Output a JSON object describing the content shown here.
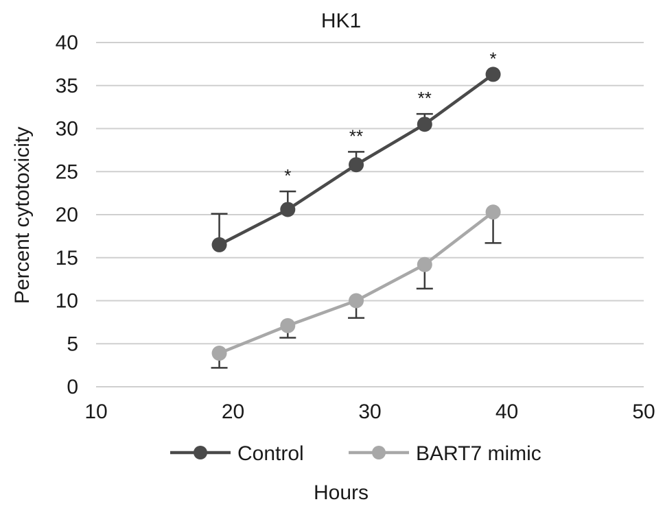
{
  "chart_data": {
    "type": "line",
    "title": "HK1",
    "xlabel": "Hours",
    "ylabel": "Percent cytotoxicity",
    "xlim": [
      10,
      50
    ],
    "ylim": [
      0,
      40
    ],
    "x_ticks": [
      10,
      20,
      30,
      40,
      50
    ],
    "y_ticks": [
      0,
      5,
      10,
      15,
      20,
      25,
      30,
      35,
      40
    ],
    "grid": "horizontal",
    "legend_position": "bottom",
    "series": [
      {
        "name": "Control",
        "color": "#4a4a4a",
        "x": [
          19,
          24,
          29,
          34,
          39
        ],
        "y": [
          16.5,
          20.6,
          25.8,
          30.5,
          36.3
        ],
        "error": [
          3.6,
          2.1,
          1.5,
          1.2,
          0.0
        ],
        "error_direction": "up"
      },
      {
        "name": "BART7 mimic",
        "color": "#a8a8a8",
        "x": [
          19,
          24,
          29,
          34,
          39
        ],
        "y": [
          3.9,
          7.1,
          10.0,
          14.2,
          20.3
        ],
        "error": [
          1.7,
          1.4,
          2.0,
          2.8,
          3.6
        ],
        "error_direction": "down"
      }
    ],
    "annotations": [
      {
        "x": 24,
        "y": 22.7,
        "text": "*"
      },
      {
        "x": 29,
        "y": 27.3,
        "text": "**"
      },
      {
        "x": 34,
        "y": 31.7,
        "text": "**"
      },
      {
        "x": 39,
        "y": 36.3,
        "text": "*"
      }
    ]
  }
}
